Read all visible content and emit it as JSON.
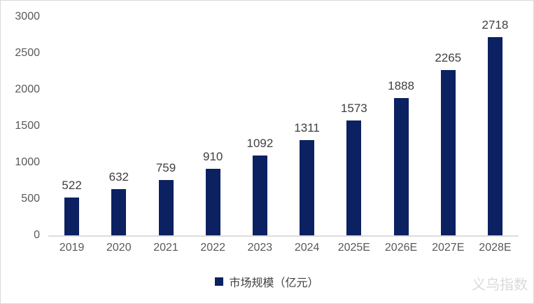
{
  "chart_data": {
    "type": "bar",
    "title": "",
    "categories": [
      "2019",
      "2020",
      "2021",
      "2022",
      "2023",
      "2024",
      "2025E",
      "2026E",
      "2027E",
      "2028E"
    ],
    "values": [
      522,
      632,
      759,
      910,
      1092,
      1311,
      1573,
      1888,
      2265,
      2718
    ],
    "series_name": "市场规模（亿元）",
    "legend": "市场规模（亿元）",
    "legend_position": "bottom-center",
    "xlabel": "",
    "ylabel": "",
    "ylim": [
      0,
      3000
    ],
    "yticks": [
      0,
      500,
      1000,
      1500,
      2000,
      2500,
      3000
    ],
    "grid": false,
    "bar_color": "#0b2161",
    "data_label_color": "#3f3f3f",
    "axis_label_color": "#595959",
    "baseline_color": "#dcdcdc"
  },
  "watermark": "义乌指数"
}
